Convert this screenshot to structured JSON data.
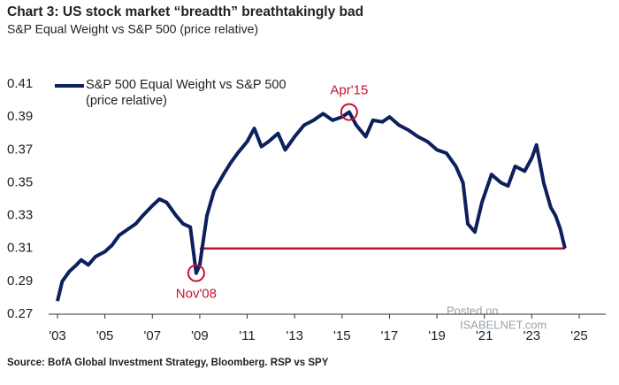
{
  "chart_data": {
    "type": "line",
    "title": "Chart 3: US stock market “breadth” breathtakingly bad",
    "subtitle": "S&P Equal Weight vs S&P 500 (price relative)",
    "source": "Source: BofA Global Investment Strategy, Bloomberg. RSP vs SPY",
    "watermark": [
      "Posted on",
      "ISABELNET.com"
    ],
    "x": [
      2003.0,
      2003.2,
      2003.5,
      2003.8,
      2004.0,
      2004.3,
      2004.6,
      2005.0,
      2005.3,
      2005.6,
      2006.0,
      2006.3,
      2006.6,
      2007.0,
      2007.3,
      2007.6,
      2008.0,
      2008.3,
      2008.6,
      2008.85,
      2009.0,
      2009.1,
      2009.3,
      2009.6,
      2010.0,
      2010.3,
      2010.6,
      2011.0,
      2011.3,
      2011.6,
      2011.9,
      2012.3,
      2012.6,
      2013.0,
      2013.4,
      2013.8,
      2014.2,
      2014.6,
      2015.0,
      2015.3,
      2015.6,
      2016.0,
      2016.3,
      2016.7,
      2017.0,
      2017.4,
      2017.8,
      2018.2,
      2018.6,
      2019.0,
      2019.4,
      2019.8,
      2020.1,
      2020.3,
      2020.6,
      2020.9,
      2021.3,
      2021.7,
      2022.0,
      2022.3,
      2022.7,
      2023.0,
      2023.2,
      2023.5,
      2023.8,
      2024.0,
      2024.2,
      2024.4
    ],
    "series": [
      {
        "name": "S&P 500 Equal Weight vs S&P 500 (price relative)",
        "color": "#0d1f5c",
        "values": [
          0.278,
          0.29,
          0.296,
          0.3,
          0.303,
          0.3,
          0.305,
          0.308,
          0.312,
          0.318,
          0.322,
          0.325,
          0.33,
          0.336,
          0.34,
          0.338,
          0.33,
          0.325,
          0.323,
          0.295,
          0.3,
          0.31,
          0.33,
          0.345,
          0.355,
          0.362,
          0.368,
          0.375,
          0.383,
          0.372,
          0.375,
          0.38,
          0.37,
          0.378,
          0.385,
          0.388,
          0.392,
          0.388,
          0.39,
          0.393,
          0.385,
          0.378,
          0.388,
          0.387,
          0.39,
          0.385,
          0.382,
          0.378,
          0.375,
          0.37,
          0.368,
          0.36,
          0.35,
          0.325,
          0.32,
          0.338,
          0.355,
          0.35,
          0.348,
          0.36,
          0.357,
          0.365,
          0.373,
          0.35,
          0.335,
          0.33,
          0.322,
          0.31
        ]
      }
    ],
    "reference_line": {
      "value": 0.31,
      "xrange": [
        2009.0,
        2024.4
      ],
      "color": "#c8102e"
    },
    "annotations": [
      {
        "label": "Apr'15",
        "x": 2015.3,
        "y": 0.393,
        "color": "#c8102e",
        "position": "above"
      },
      {
        "label": "Nov'08",
        "x": 2008.85,
        "y": 0.295,
        "color": "#c8102e",
        "position": "below"
      }
    ],
    "xlim": [
      2003,
      2025
    ],
    "xticks": [
      {
        "value": 2003,
        "label": "'03"
      },
      {
        "value": 2005,
        "label": "'05"
      },
      {
        "value": 2007,
        "label": "'07"
      },
      {
        "value": 2009,
        "label": "'09"
      },
      {
        "value": 2011,
        "label": "'11"
      },
      {
        "value": 2013,
        "label": "'13"
      },
      {
        "value": 2015,
        "label": "'15"
      },
      {
        "value": 2017,
        "label": "'17"
      },
      {
        "value": 2019,
        "label": "'19"
      },
      {
        "value": 2021,
        "label": "'21"
      },
      {
        "value": 2023,
        "label": "'23"
      },
      {
        "value": 2025,
        "label": "'25"
      }
    ],
    "ylim": [
      0.27,
      0.41
    ],
    "yticks": [
      0.27,
      0.29,
      0.31,
      0.33,
      0.35,
      0.37,
      0.39,
      0.41
    ],
    "grid": false,
    "legend": "upper left"
  }
}
